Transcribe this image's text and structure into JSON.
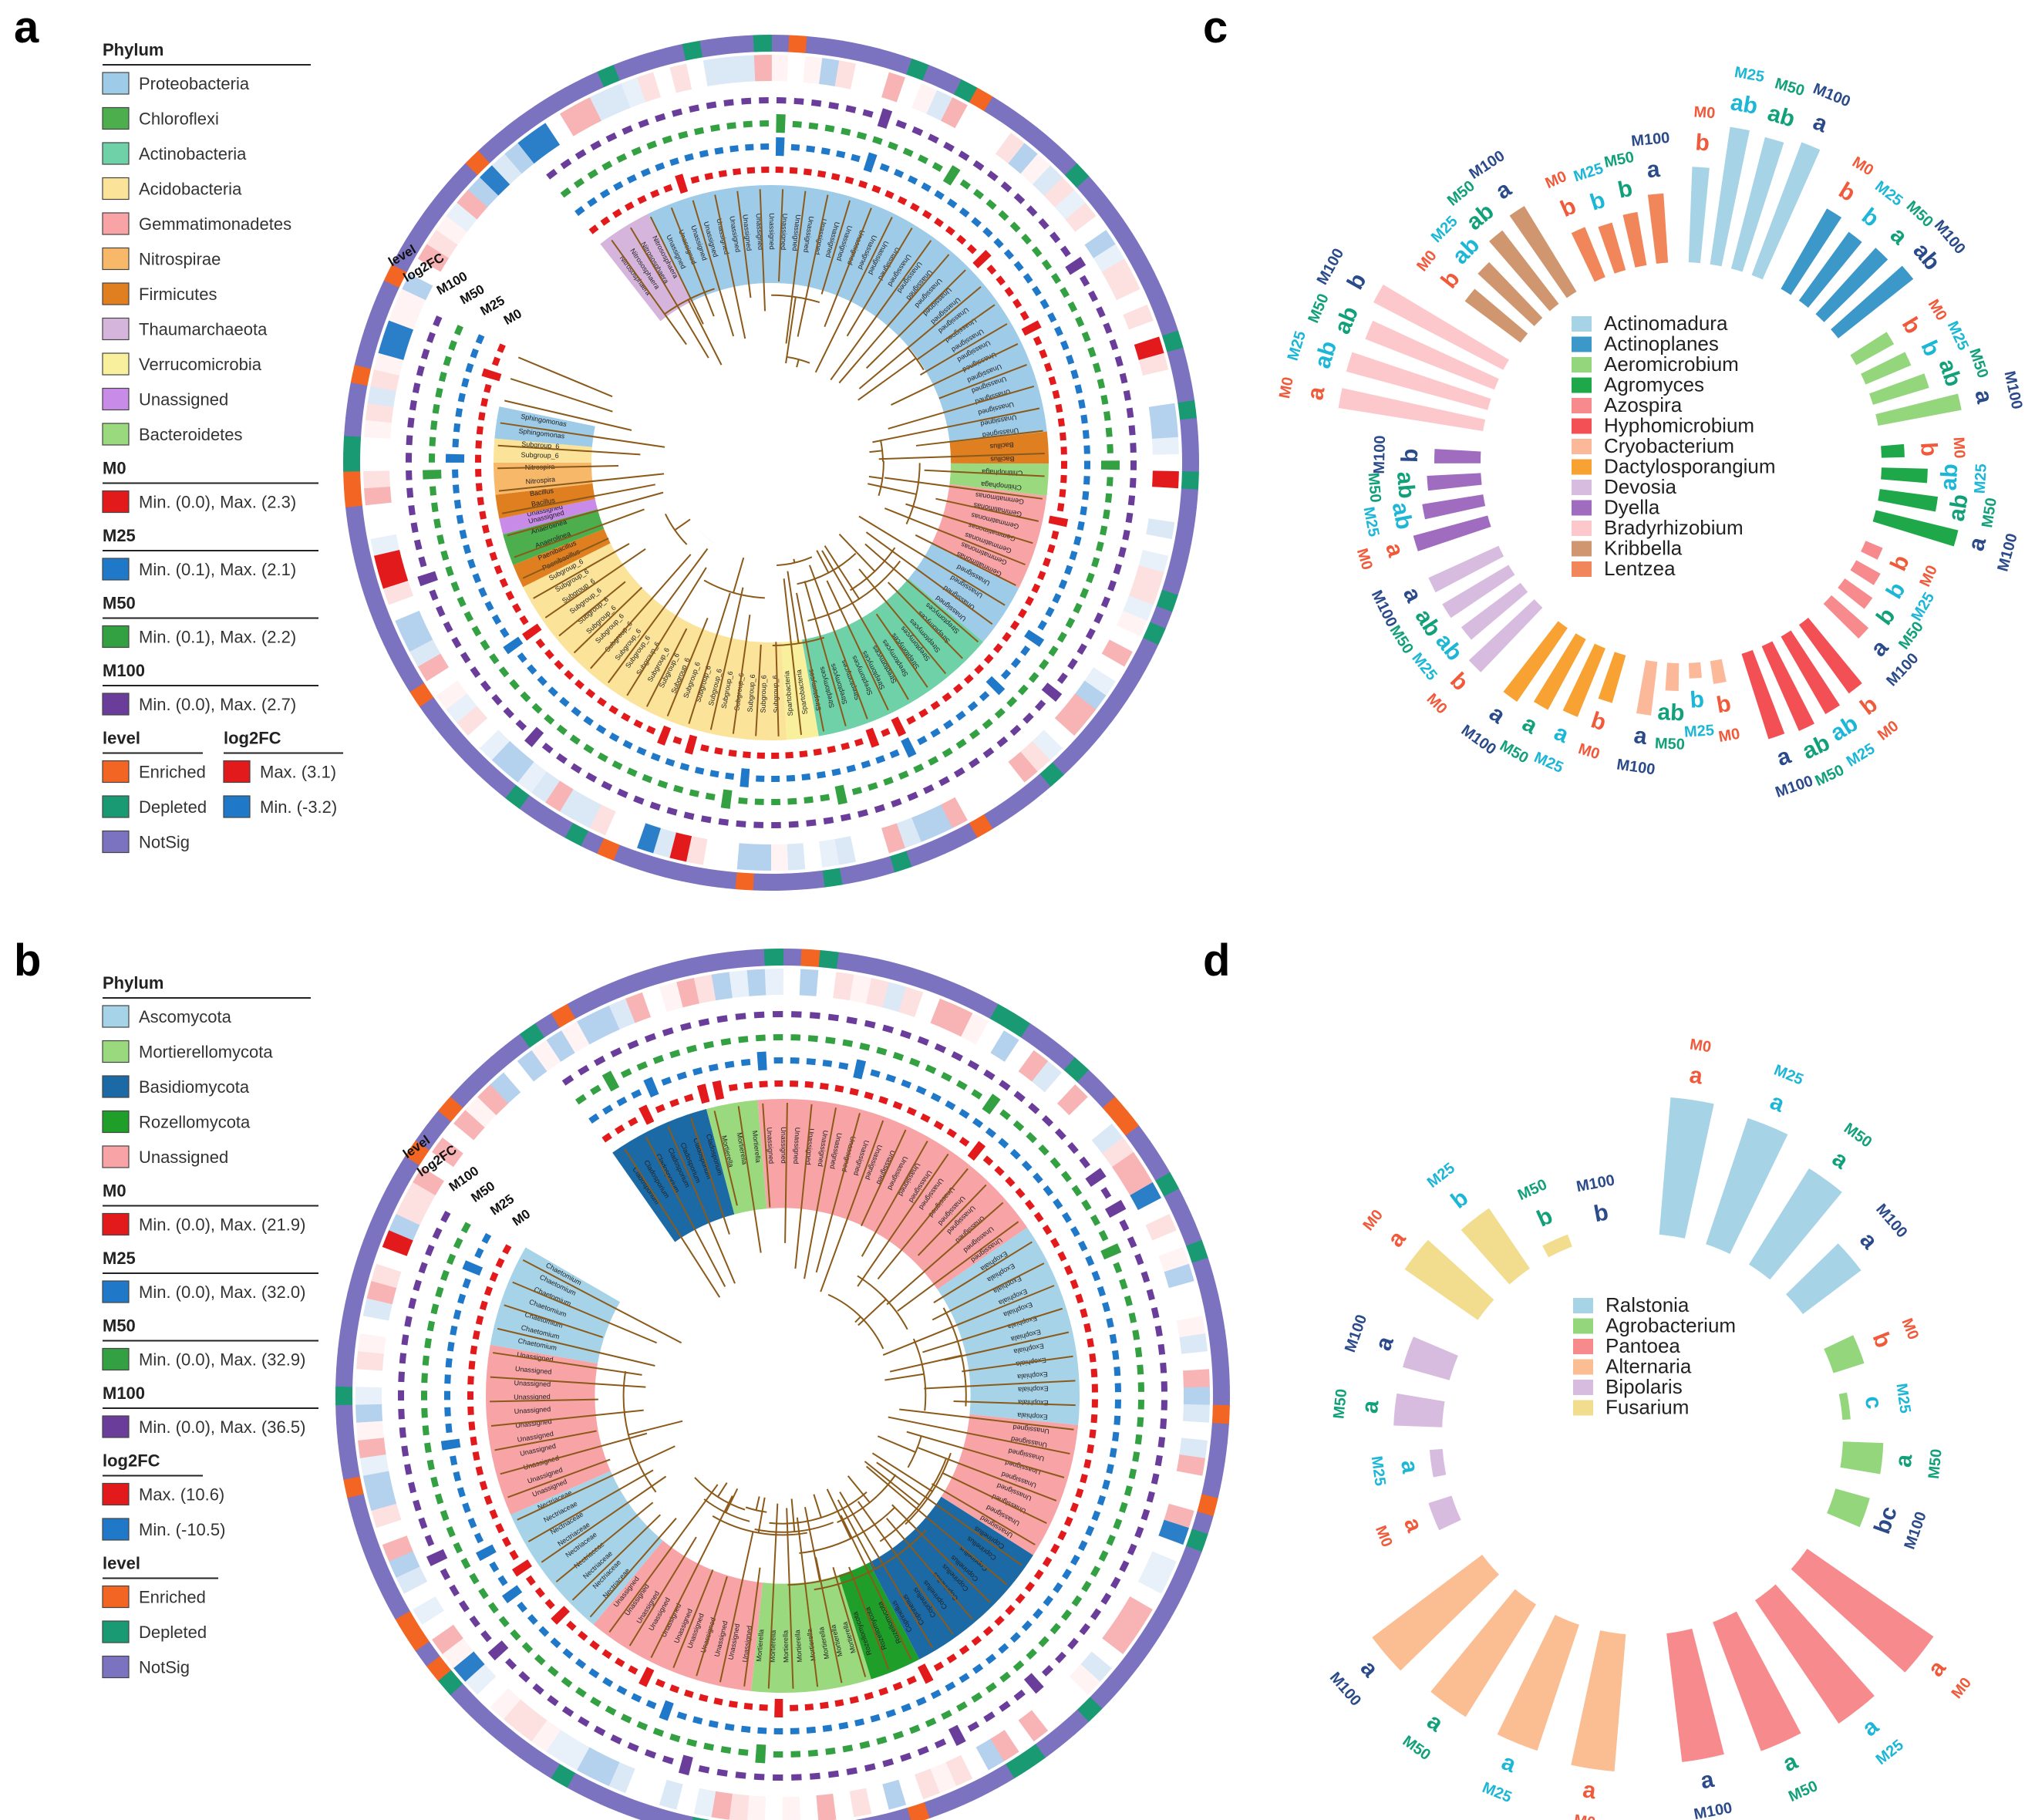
{
  "panels": {
    "a": {
      "letter": "a",
      "legend": {
        "phylum_title": "Phylum",
        "phyla": [
          {
            "name": "Proteobacteria",
            "color": "#9dcbe8"
          },
          {
            "name": "Chloroflexi",
            "color": "#4cae4c"
          },
          {
            "name": "Actinobacteria",
            "color": "#6fd1a8"
          },
          {
            "name": "Acidobacteria",
            "color": "#fbe39a"
          },
          {
            "name": "Gemmatimonadetes",
            "color": "#f8a3a6"
          },
          {
            "name": "Nitrospirae",
            "color": "#f7b86a"
          },
          {
            "name": "Firmicutes",
            "color": "#df7f1f"
          },
          {
            "name": "Thaumarchaeota",
            "color": "#d6b5dd"
          },
          {
            "name": "Verrucomicrobia",
            "color": "#f8f09d"
          },
          {
            "name": "Unassigned",
            "color": "#c98be8"
          },
          {
            "name": "Bacteroidetes",
            "color": "#9ad97e"
          }
        ],
        "treatments": [
          {
            "title": "M0",
            "color": "#e31a1c",
            "range": "Min. (0.0), Max. (2.3)"
          },
          {
            "title": "M25",
            "color": "#1f78c8",
            "range": "Min. (0.1), Max. (2.1)"
          },
          {
            "title": "M50",
            "color": "#33a041",
            "range": "Min. (0.1), Max. (2.2)"
          },
          {
            "title": "M100",
            "color": "#6a3d9a",
            "range": "Min. (0.0), Max. (2.7)"
          }
        ],
        "level_title": "level",
        "levels": [
          {
            "name": "Enriched",
            "color": "#f26522"
          },
          {
            "name": "Depleted",
            "color": "#1a9a72"
          },
          {
            "name": "NotSig",
            "color": "#7b73c0"
          }
        ],
        "log2fc_title": "log2FC",
        "log2fc": [
          {
            "label": "Max. (3.1)",
            "color": "#e31a1c"
          },
          {
            "label": "Min. (-3.2)",
            "color": "#1f78c8"
          }
        ]
      },
      "ring_labels": [
        "level",
        "log2FC",
        "M100",
        "M50",
        "M25",
        "M0"
      ]
    },
    "b": {
      "letter": "b",
      "legend": {
        "phylum_title": "Phylum",
        "phyla": [
          {
            "name": "Ascomycota",
            "color": "#a6d3e8"
          },
          {
            "name": "Mortierellomycota",
            "color": "#9ad97e"
          },
          {
            "name": "Basidiomycota",
            "color": "#1b6aa6"
          },
          {
            "name": "Rozellomycota",
            "color": "#1f9e2a"
          },
          {
            "name": "Unassigned",
            "color": "#f8a3a6"
          }
        ],
        "treatments": [
          {
            "title": "M0",
            "color": "#e31a1c",
            "range": "Min. (0.0), Max. (21.9)"
          },
          {
            "title": "M25",
            "color": "#1f78c8",
            "range": "Min. (0.0), Max. (32.0)"
          },
          {
            "title": "M50",
            "color": "#33a041",
            "range": "Min. (0.0), Max. (32.9)"
          },
          {
            "title": "M100",
            "color": "#6a3d9a",
            "range": "Min. (0.0), Max. (36.5)"
          }
        ],
        "log2fc_title": "log2FC",
        "log2fc": [
          {
            "label": "Max. (10.6)",
            "color": "#e31a1c"
          },
          {
            "label": "Min. (-10.5)",
            "color": "#1f78c8"
          }
        ],
        "level_title": "level",
        "levels": [
          {
            "name": "Enriched",
            "color": "#f26522"
          },
          {
            "name": "Depleted",
            "color": "#1a9a72"
          },
          {
            "name": "NotSig",
            "color": "#7b73c0"
          }
        ]
      },
      "ring_labels": [
        "level",
        "log2FC",
        "M100",
        "M50",
        "M25",
        "M0"
      ]
    }
  },
  "chart_data": [
    {
      "panel": "c",
      "type": "bar",
      "subtype": "circular-grouped-bar",
      "title": "",
      "treatments": [
        "M0",
        "M25",
        "M50",
        "M100"
      ],
      "series": [
        {
          "name": "Actinomadura",
          "color": "#a6d3e6",
          "values": [
            0.62,
            0.9,
            0.88,
            0.92
          ],
          "letters": [
            "b",
            "ab",
            "ab",
            "a"
          ]
        },
        {
          "name": "Actinoplanes",
          "color": "#3b98c8",
          "values": [
            0.6,
            0.55,
            0.58,
            0.62
          ],
          "letters": [
            "b",
            "b",
            "a",
            "ab"
          ]
        },
        {
          "name": "Aeromicrobium",
          "color": "#93d67c",
          "values": [
            0.28,
            0.32,
            0.38,
            0.55
          ],
          "letters": [
            "b",
            "b",
            "ab",
            "a"
          ]
        },
        {
          "name": "Agromyces",
          "color": "#1fa84a",
          "values": [
            0.15,
            0.3,
            0.38,
            0.55
          ],
          "letters": [
            "b",
            "ab",
            "ab",
            "a"
          ]
        },
        {
          "name": "Azospira",
          "color": "#f78a8c",
          "values": [
            0.12,
            0.18,
            0.22,
            0.32
          ],
          "letters": [
            "b",
            "b",
            "b",
            "a"
          ]
        },
        {
          "name": "Hyphomicrobium",
          "color": "#f25055",
          "values": [
            0.55,
            0.58,
            0.6,
            0.58
          ],
          "letters": [
            "b",
            "ab",
            "ab",
            "a"
          ]
        },
        {
          "name": "Cryobacterium",
          "color": "#fbb99a",
          "values": [
            0.15,
            0.1,
            0.18,
            0.35
          ],
          "letters": [
            "b",
            "b",
            "ab",
            "a"
          ]
        },
        {
          "name": "Dactylosporangium",
          "color": "#f7a232",
          "values": [
            0.32,
            0.48,
            0.52,
            0.58
          ],
          "letters": [
            "b",
            "a",
            "a",
            "a"
          ]
        },
        {
          "name": "Devosia",
          "color": "#d7bce0",
          "values": [
            0.58,
            0.48,
            0.5,
            0.5
          ],
          "letters": [
            "b",
            "ab",
            "ab",
            "a"
          ]
        },
        {
          "name": "Dyella",
          "color": "#a06cc0",
          "values": [
            0.5,
            0.4,
            0.35,
            0.3
          ],
          "letters": [
            "a",
            "ab",
            "ab",
            "b"
          ]
        },
        {
          "name": "Bradyrhizobium",
          "color": "#fcc8cb",
          "values": [
            0.95,
            0.95,
            0.9,
            0.95
          ],
          "letters": [
            "a",
            "ab",
            "ab",
            "b"
          ]
        },
        {
          "name": "Kribbella",
          "color": "#cf9670",
          "values": [
            0.45,
            0.5,
            0.6,
            0.65
          ],
          "letters": [
            "b",
            "ab",
            "ab",
            "a"
          ]
        },
        {
          "name": "Lentzea",
          "color": "#f0865a",
          "values": [
            0.35,
            0.32,
            0.35,
            0.45
          ],
          "letters": [
            "b",
            "b",
            "b",
            "a"
          ]
        }
      ]
    },
    {
      "panel": "d",
      "type": "bar",
      "subtype": "circular-grouped-bar",
      "title": "",
      "treatments": [
        "M0",
        "M25",
        "M50",
        "M100"
      ],
      "series": [
        {
          "name": "Ralstonia",
          "color": "#a6d3e6",
          "values": [
            0.85,
            0.82,
            0.7,
            0.45
          ],
          "letters": [
            "a",
            "a",
            "a",
            "a"
          ]
        },
        {
          "name": "Agrobacterium",
          "color": "#93d67c",
          "values": [
            0.2,
            0.05,
            0.25,
            0.22
          ],
          "letters": [
            "b",
            "c",
            "a",
            "bc"
          ]
        },
        {
          "name": "Pantoea",
          "color": "#f78a8c",
          "values": [
            0.95,
            0.92,
            0.85,
            0.8
          ],
          "letters": [
            "a",
            "a",
            "a",
            "a"
          ]
        },
        {
          "name": "Alternaria",
          "color": "#fbbd92",
          "values": [
            0.85,
            0.82,
            0.82,
            0.85
          ],
          "letters": [
            "a",
            "a",
            "a",
            "a"
          ]
        },
        {
          "name": "Bipolaris",
          "color": "#d7bce0",
          "values": [
            0.15,
            0.08,
            0.3,
            0.3
          ],
          "letters": [
            "a",
            "a",
            "a",
            "a"
          ]
        },
        {
          "name": "Fusarium",
          "color": "#f2dc8e",
          "values": [
            0.55,
            0.45,
            0.08,
            0.0
          ],
          "letters": [
            "a",
            "b",
            "b",
            "b"
          ]
        }
      ]
    }
  ]
}
